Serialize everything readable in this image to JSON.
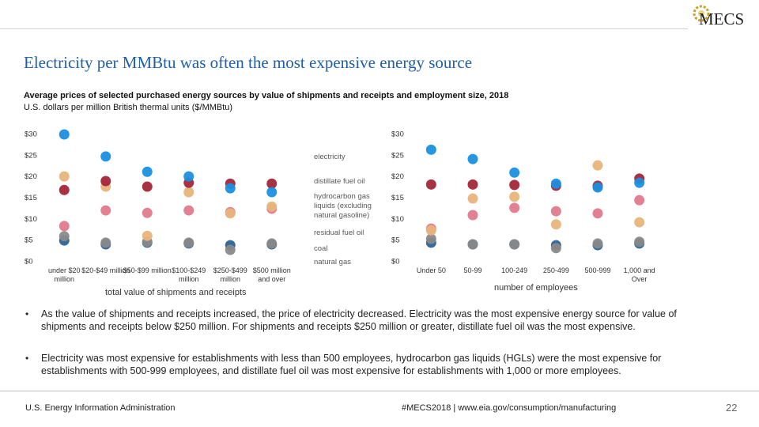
{
  "header": {
    "logo": "MECS",
    "title": "Electricity per MMBtu was often the most expensive energy source",
    "subtitle": "Average prices of selected purchased energy sources by value of shipments and receipts and employment size, 2018",
    "units": "U.S. dollars per million British thermal units ($/MMBtu)"
  },
  "chart_data": [
    {
      "type": "dot",
      "x_label": "total value of shipments and receipts",
      "categories": [
        "under $20 million",
        "$20-$49 million",
        "$50-$99 million",
        "$100-$249 million",
        "$250-$499 million",
        "$500 million and over"
      ],
      "ylim": [
        0,
        30
      ],
      "yticks": [
        {
          "value": 0,
          "label": "$0"
        },
        {
          "value": 5,
          "label": "$5"
        },
        {
          "value": 10,
          "label": "$10"
        },
        {
          "value": 15,
          "label": "$15"
        },
        {
          "value": 20,
          "label": "$20"
        },
        {
          "value": 25,
          "label": "$25"
        },
        {
          "value": 30,
          "label": "$30"
        }
      ],
      "series": [
        {
          "name": "electricity",
          "color": "#1a8fe0",
          "values": [
            30.0,
            24.8,
            21.2,
            20.1,
            17.3,
            16.4
          ]
        },
        {
          "name": "distillate fuel oil",
          "color": "#a32638",
          "values": [
            16.9,
            19.0,
            17.7,
            18.6,
            18.4,
            18.4
          ]
        },
        {
          "name": "hydrocarbon gas liquids (excluding natural gasoline)",
          "color": "#e8b47c",
          "values": [
            20.1,
            17.7,
            6.1,
            16.4,
            11.4,
            13.0
          ]
        },
        {
          "name": "residual fuel oil",
          "color": "#e07a8c",
          "values": [
            8.4,
            12.1,
            11.5,
            12.1,
            11.7,
            12.5
          ]
        },
        {
          "name": "coal",
          "color": "#8a8a8a",
          "values": [
            6.0,
            4.5,
            4.7,
            4.5,
            2.8,
            4.3
          ]
        },
        {
          "name": "natural gas",
          "color": "#2a6496",
          "values": [
            5.0,
            4.1,
            4.5,
            4.3,
            3.9,
            4.1
          ]
        }
      ]
    },
    {
      "type": "dot",
      "x_label": "number of employees",
      "categories": [
        "Under 50",
        "50-99",
        "100-249",
        "250-499",
        "500-999",
        "1,000 and Over"
      ],
      "ylim": [
        0,
        30
      ],
      "yticks": [
        {
          "value": 0,
          "label": "$0"
        },
        {
          "value": 5,
          "label": "$5"
        },
        {
          "value": 10,
          "label": "$10"
        },
        {
          "value": 15,
          "label": "$15"
        },
        {
          "value": 20,
          "label": "$20"
        },
        {
          "value": 25,
          "label": "$25"
        },
        {
          "value": 30,
          "label": "$30"
        }
      ],
      "series": [
        {
          "color": "#1a8fe0",
          "values": [
            26.4,
            24.2,
            21.0,
            18.4,
            17.5,
            18.6
          ]
        },
        {
          "color": "#a32638",
          "values": [
            18.2,
            18.2,
            18.1,
            17.9,
            17.9,
            19.6
          ]
        },
        {
          "color": "#e8b47c",
          "values": [
            7.4,
            14.9,
            15.3,
            8.8,
            22.7,
            9.3
          ]
        },
        {
          "color": "#e07a8c",
          "values": [
            7.8,
            11.0,
            12.7,
            11.9,
            11.4,
            14.5
          ]
        },
        {
          "color": "#8a8a8a",
          "values": [
            5.4,
            4.1,
            4.1,
            3.2,
            4.3,
            4.7
          ]
        },
        {
          "color": "#2a6496",
          "values": [
            4.5,
            4.1,
            4.1,
            3.9,
            3.9,
            4.3
          ]
        }
      ]
    }
  ],
  "bullets": [
    "As the value of shipments and receipts increased, the price of electricity decreased. Electricity was the most expensive energy source for value of shipments and receipts below $250 million. For shipments and receipts $250 million or greater, distillate fuel oil was the most expensive.",
    "Electricity was most expensive for establishments with less than 500 employees, hydrocarbon gas liquids (HGLs) were the most expensive for establishments with 500-999 employees, and distillate fuel oil was most expensive for establishments with 1,000 or more employees."
  ],
  "footer": {
    "source": "U.S. Energy Information Administration",
    "link": "#MECS2018 | www.eia.gov/consumption/manufacturing",
    "page": "22"
  }
}
